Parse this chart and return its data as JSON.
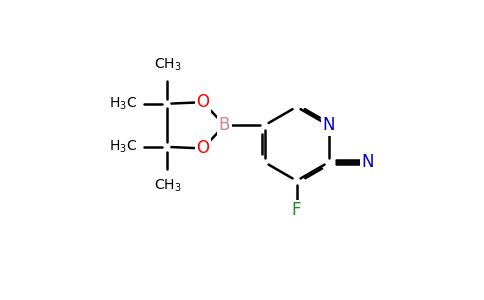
{
  "background_color": "#ffffff",
  "figsize": [
    4.84,
    3.0
  ],
  "dpi": 100,
  "atom_colors": {
    "C": "#000000",
    "N": "#0000cc",
    "O": "#ff0000",
    "B": "#cc8888",
    "F": "#228b22",
    "H": "#000000"
  }
}
